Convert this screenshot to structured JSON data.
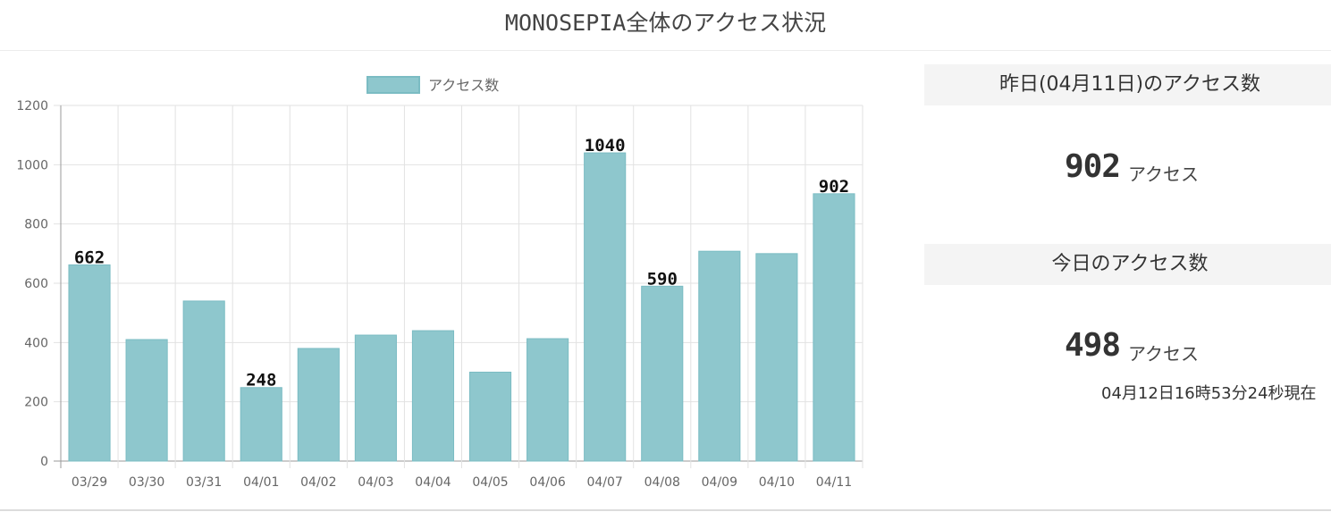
{
  "page": {
    "title": "MONOSEPIA全体のアクセス状況"
  },
  "chart_data": {
    "type": "bar",
    "title": "",
    "xlabel": "",
    "ylabel": "",
    "legend": {
      "label": "アクセス数",
      "position": "top-center"
    },
    "categories": [
      "03/29",
      "03/30",
      "03/31",
      "04/01",
      "04/02",
      "04/03",
      "04/04",
      "04/05",
      "04/06",
      "04/07",
      "04/08",
      "04/09",
      "04/10",
      "04/11"
    ],
    "series": [
      {
        "name": "アクセス数",
        "values": [
          662,
          410,
          540,
          248,
          380,
          425,
          440,
          300,
          413,
          1040,
          590,
          708,
          700,
          902
        ]
      }
    ],
    "data_labels": {
      "03/29": "662",
      "04/01": "248",
      "04/07": "1040",
      "04/08": "590",
      "04/11": "902"
    },
    "ylim": [
      0,
      1200
    ],
    "yticks": [
      0,
      200,
      400,
      600,
      800,
      1000,
      1200
    ],
    "grid": true,
    "bar_color": "#8ec7cd",
    "bar_border_color": "#7bbcc3"
  },
  "stats": {
    "yesterday": {
      "heading": "昨日(04月11日)のアクセス数",
      "value": "902",
      "unit": "アクセス"
    },
    "today": {
      "heading": "今日のアクセス数",
      "value": "498",
      "unit": "アクセス",
      "as_of": "04月12日16時53分24秒現在"
    }
  }
}
